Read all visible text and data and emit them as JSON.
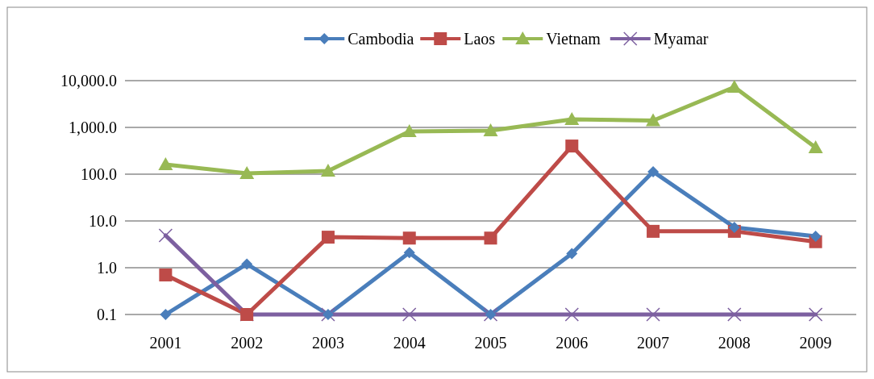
{
  "chart_data": {
    "type": "line",
    "categories": [
      "2001",
      "2002",
      "2003",
      "2004",
      "2005",
      "2006",
      "2007",
      "2008",
      "2009"
    ],
    "series": [
      {
        "name": "Cambodia",
        "color": "#4a7ebb",
        "marker": "diamond",
        "values": [
          0.1,
          1.2,
          0.1,
          2.1,
          0.1,
          2.0,
          113,
          7.3,
          4.7
        ]
      },
      {
        "name": "Laos",
        "color": "#be4b48",
        "marker": "square",
        "values": [
          0.7,
          0.1,
          4.5,
          4.3,
          4.3,
          400,
          6,
          6,
          3.6
        ]
      },
      {
        "name": "Vietnam",
        "color": "#98b954",
        "marker": "triangle",
        "values": [
          161,
          104,
          117,
          820,
          850,
          1490,
          1400,
          7280,
          370
        ]
      },
      {
        "name": "Myamar",
        "color": "#7d60a0",
        "marker": "cross",
        "values": [
          4.9,
          0.1,
          0.1,
          0.1,
          0.1,
          0.1,
          0.1,
          0.1,
          0.1
        ]
      }
    ],
    "log": "y",
    "ylim": [
      0.1,
      10000
    ],
    "yticks": [
      0.1,
      {
        "value": 1,
        "label": "1.0"
      },
      {
        "value": 10,
        "label": "10.0"
      },
      {
        "value": 100,
        "label": "100.0"
      },
      {
        "value": 1000,
        "label": "1,000.0"
      },
      {
        "value": 10000,
        "label": "10,000.0"
      }
    ],
    "grid": "y",
    "legend": "top",
    "line_style": "solid"
  }
}
